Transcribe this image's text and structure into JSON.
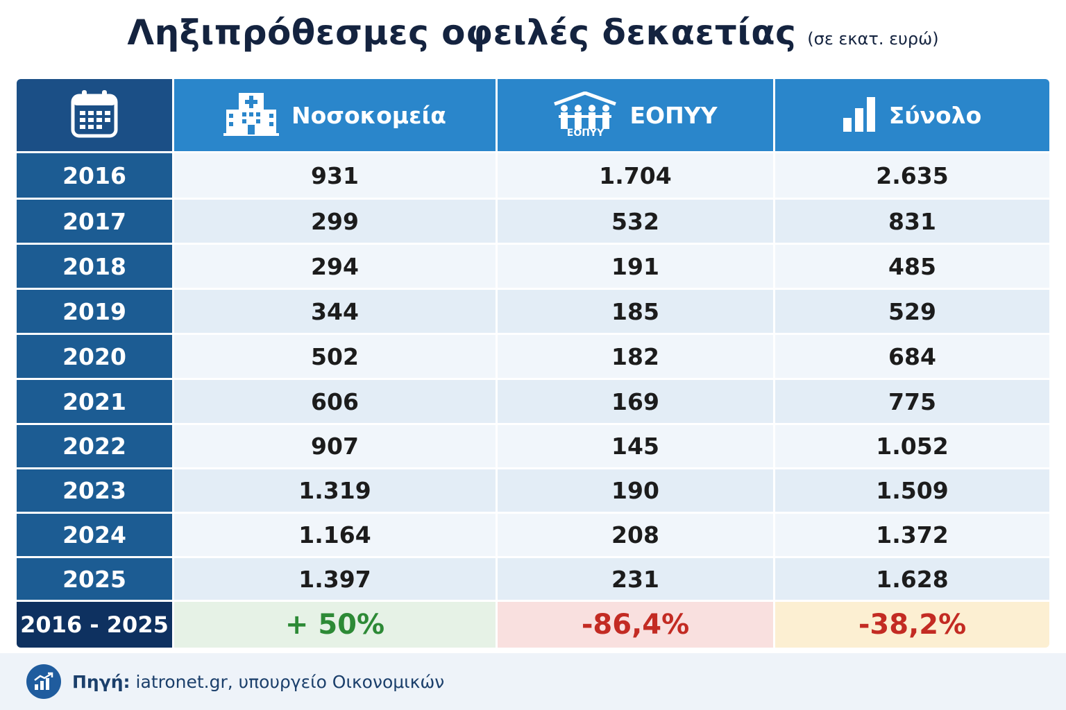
{
  "title": "Ληξιπρόθεσμες οφειλές δεκαετίας",
  "subtitle": "(σε εκατ. ευρώ)",
  "columns": {
    "hospitals": "Νοσοκομεία",
    "eopyy": "ΕΟΠΥΥ",
    "eopyy_logo_text": "ΕΟΠΥΥ",
    "total": "Σύνολο"
  },
  "icons": {
    "year": "calendar-icon",
    "hospitals": "hospital-icon",
    "eopyy": "eopyy-logo-icon",
    "total": "bar-chart-icon",
    "source": "chart-growth-icon"
  },
  "colors": {
    "year_column": "#1c5c93",
    "header": "#2a86cb",
    "summary_year": "#0e3160",
    "positive": "#2d8a36",
    "negative": "#c32b23"
  },
  "chart_data": {
    "type": "table",
    "title": "Ληξιπρόθεσμες οφειλές δεκαετίας",
    "subtitle": "(σε εκατ. ευρώ)",
    "columns": [
      "",
      "Νοσοκομεία",
      "ΕΟΠΥΥ",
      "Σύνολο"
    ],
    "rows": [
      {
        "year": "2016",
        "hospitals": "931",
        "eopyy": "1.704",
        "total": "2.635"
      },
      {
        "year": "2017",
        "hospitals": "299",
        "eopyy": "532",
        "total": "831"
      },
      {
        "year": "2018",
        "hospitals": "294",
        "eopyy": "191",
        "total": "485"
      },
      {
        "year": "2019",
        "hospitals": "344",
        "eopyy": "185",
        "total": "529"
      },
      {
        "year": "2020",
        "hospitals": "502",
        "eopyy": "182",
        "total": "684"
      },
      {
        "year": "2021",
        "hospitals": "606",
        "eopyy": "169",
        "total": "775"
      },
      {
        "year": "2022",
        "hospitals": "907",
        "eopyy": "145",
        "total": "1.052"
      },
      {
        "year": "2023",
        "hospitals": "1.319",
        "eopyy": "190",
        "total": "1.509"
      },
      {
        "year": "2024",
        "hospitals": "1.164",
        "eopyy": "208",
        "total": "1.372"
      },
      {
        "year": "2025",
        "hospitals": "1.397",
        "eopyy": "231",
        "total": "1.628"
      }
    ],
    "summary": {
      "label": "2016 - 2025",
      "hospitals": "+ 50%",
      "eopyy": "-86,4%",
      "total": "-38,2%"
    }
  },
  "footer": {
    "source_label": "Πηγή:",
    "source_text": "iatronet.gr, υπουργείο Οικονομικών"
  }
}
